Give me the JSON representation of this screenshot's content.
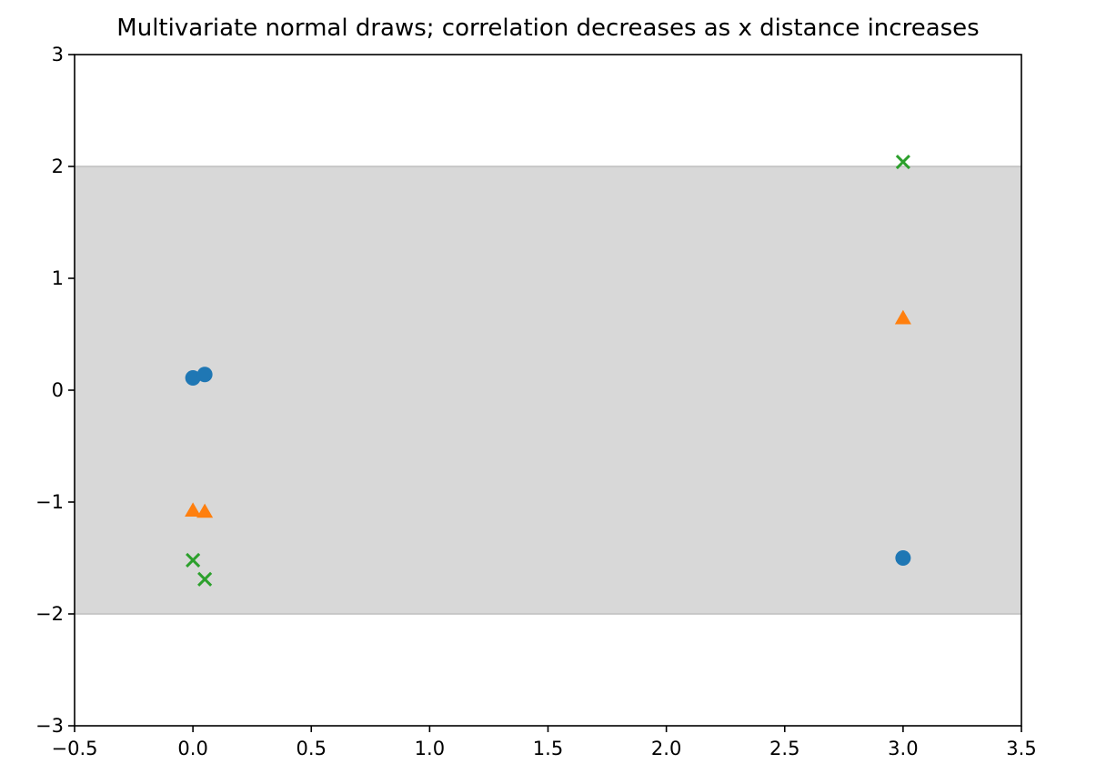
{
  "chart_data": {
    "type": "scatter",
    "title": "Multivariate normal draws; correlation decreases as x distance increases",
    "xlabel": "",
    "ylabel": "",
    "xlim": [
      -0.5,
      3.5
    ],
    "ylim": [
      -3,
      3
    ],
    "x_ticks": [
      "−0.5",
      "0.0",
      "0.5",
      "1.0",
      "1.5",
      "2.0",
      "2.5",
      "3.0",
      "3.5"
    ],
    "y_ticks": [
      "−3",
      "−2",
      "−1",
      "0",
      "1",
      "2",
      "3"
    ],
    "grid": false,
    "legend": "none",
    "band": {
      "y_from": -2,
      "y_to": 2,
      "color": "#d8d8d8",
      "edge_color": "#c4c4c4"
    },
    "series": [
      {
        "marker": "circle",
        "color": "#1f77b4",
        "points": [
          {
            "x": 0.0,
            "y": 0.11
          },
          {
            "x": 0.05,
            "y": 0.14
          },
          {
            "x": 3.0,
            "y": -1.5
          }
        ]
      },
      {
        "marker": "triangle",
        "color": "#ff7f0e",
        "points": [
          {
            "x": 0.0,
            "y": -1.08
          },
          {
            "x": 0.05,
            "y": -1.09
          },
          {
            "x": 3.0,
            "y": 0.64
          }
        ]
      },
      {
        "marker": "x",
        "color": "#2ca02c",
        "points": [
          {
            "x": 0.0,
            "y": -1.52
          },
          {
            "x": 0.05,
            "y": -1.69
          },
          {
            "x": 3.0,
            "y": 2.04
          }
        ]
      }
    ]
  }
}
